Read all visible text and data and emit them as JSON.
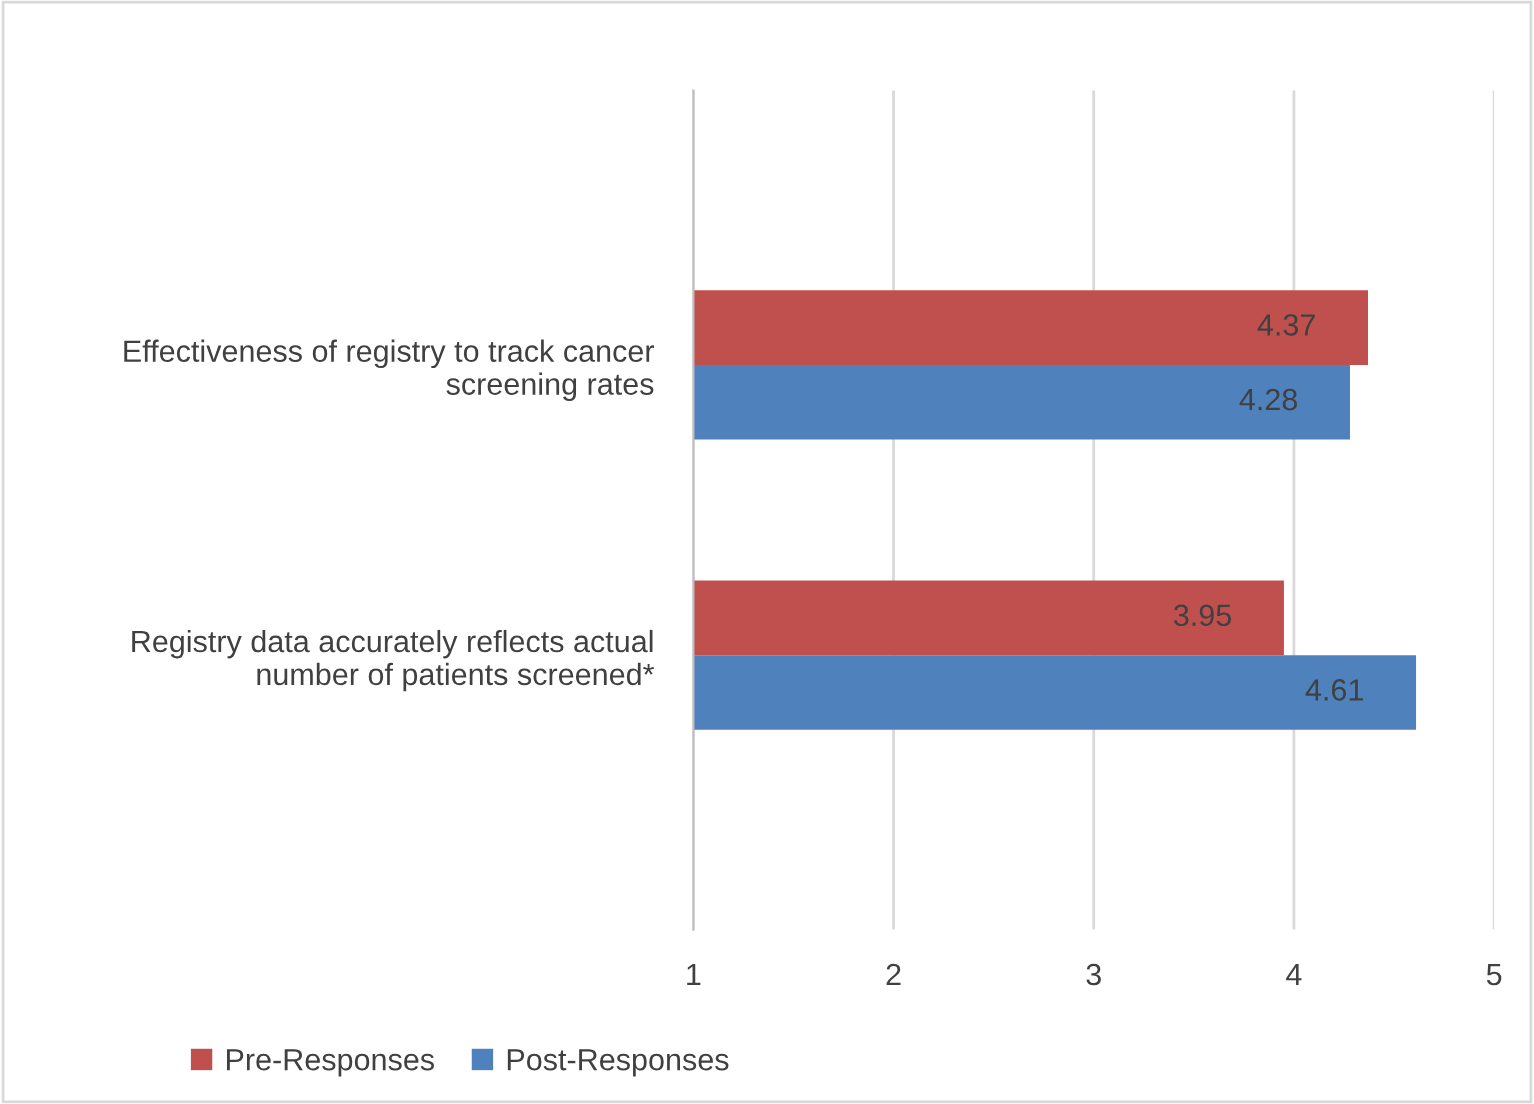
{
  "chart_data": {
    "type": "bar",
    "orientation": "horizontal",
    "categories": [
      "Effectiveness of registry to track cancer\nscreening rates",
      "Registry data accurately reflects actual\nnumber of patients screened*"
    ],
    "series": [
      {
        "name": "Pre-Responses",
        "color": "#c0504d",
        "values": [
          4.37,
          3.95
        ]
      },
      {
        "name": "Post-Responses",
        "color": "#4f81bd",
        "values": [
          4.28,
          4.61
        ]
      }
    ],
    "xlim": [
      1,
      5
    ],
    "xticks": [
      1,
      2,
      3,
      4,
      5
    ],
    "grid": "x",
    "legend": "bottom",
    "data_labels": true
  }
}
